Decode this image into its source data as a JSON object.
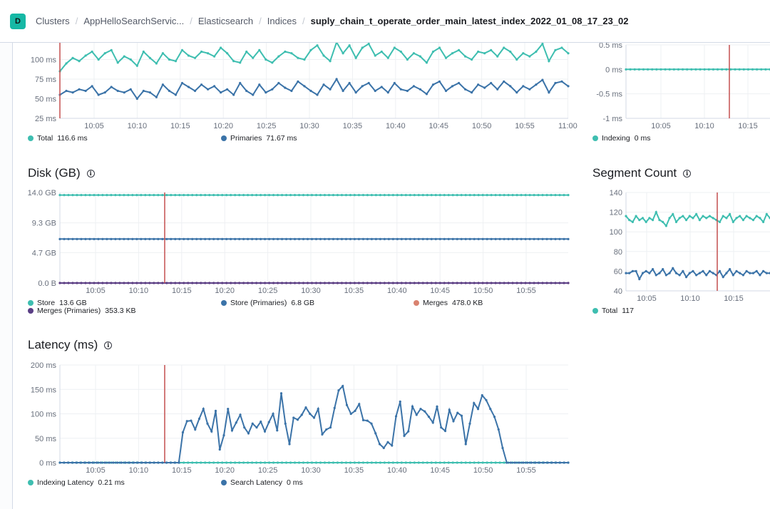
{
  "header": {
    "app_badge": "D",
    "breadcrumbs": [
      "Clusters",
      "AppHelloSearchServic...",
      "Elasticsearch",
      "Indices",
      "suply_chain_t_operate_order_main_latest_index_2022_01_08_17_23_02"
    ]
  },
  "colors": {
    "teal": "#3ebeb0",
    "blue": "#3b73a8",
    "purple": "#5a3e85",
    "salmon": "#d9826f",
    "marker": "#c44f4f"
  },
  "chart_data": [
    {
      "id": "search_rate_partial",
      "type": "line",
      "title": "",
      "x_ticks": [
        "10:05",
        "10:10",
        "10:15",
        "10:20",
        "10:25",
        "10:30",
        "10:35",
        "10:40",
        "10:45",
        "10:50",
        "10:55",
        "11:00"
      ],
      "y_ticks": [
        "25 ms",
        "50 ms",
        "75 ms",
        "100 ms",
        "125 ms"
      ],
      "ylim": [
        25,
        125
      ],
      "series": [
        {
          "name": "Total",
          "legend_value": "116.6 ms",
          "color": "#3ebeb0",
          "values": [
            85,
            95,
            102,
            98,
            105,
            110,
            100,
            108,
            112,
            96,
            104,
            100,
            92,
            110,
            102,
            95,
            108,
            100,
            98,
            112,
            105,
            102,
            110,
            108,
            104,
            115,
            108,
            98,
            96,
            110,
            102,
            112,
            100,
            96,
            104,
            110,
            108,
            102,
            100,
            112,
            118,
            105,
            98,
            122,
            108,
            118,
            102,
            115,
            120,
            105,
            110,
            102,
            115,
            110,
            100,
            108,
            104,
            96,
            110,
            115,
            102,
            108,
            112,
            104,
            100,
            110,
            108,
            112,
            104,
            115,
            110,
            100,
            108,
            104,
            110,
            120,
            98,
            112,
            115,
            108
          ]
        },
        {
          "name": "Primaries",
          "legend_value": "71.67 ms",
          "color": "#3b73a8",
          "values": [
            55,
            60,
            58,
            62,
            60,
            66,
            55,
            58,
            65,
            60,
            58,
            62,
            50,
            60,
            58,
            52,
            68,
            60,
            55,
            70,
            65,
            60,
            68,
            62,
            66,
            58,
            62,
            55,
            70,
            60,
            55,
            68,
            58,
            62,
            70,
            64,
            60,
            72,
            66,
            60,
            55,
            68,
            62,
            75,
            60,
            70,
            58,
            66,
            70,
            60,
            65,
            58,
            70,
            62,
            60,
            66,
            62,
            56,
            68,
            72,
            60,
            66,
            70,
            62,
            58,
            68,
            64,
            70,
            62,
            72,
            66,
            58,
            66,
            62,
            68,
            74,
            58,
            70,
            72,
            66
          ]
        }
      ]
    },
    {
      "id": "indexing_partial",
      "type": "line",
      "title": "",
      "x_ticks": [
        "10:05",
        "10:10",
        "10:15"
      ],
      "y_ticks": [
        "0.5 ms",
        "0 ms",
        "-0.5 ms",
        "-1 ms"
      ],
      "ylim": [
        -1,
        0.5
      ],
      "series": [
        {
          "name": "Indexing",
          "legend_value": "0 ms",
          "color": "#3ebeb0",
          "values": [
            0
          ]
        }
      ]
    },
    {
      "id": "disk",
      "type": "line",
      "title": "Disk (GB)",
      "x_ticks": [
        "10:05",
        "10:10",
        "10:15",
        "10:20",
        "10:25",
        "10:30",
        "10:35",
        "10:40",
        "10:45",
        "10:50",
        "10:55",
        "11:00"
      ],
      "y_ticks": [
        "14.0 GB",
        "9.3 GB",
        "4.7 GB",
        "0.0 B"
      ],
      "ylim": [
        0,
        14.0
      ],
      "series": [
        {
          "name": "Store",
          "legend_value": "13.6 GB",
          "color": "#3ebeb0",
          "values": [
            13.6
          ]
        },
        {
          "name": "Store (Primaries)",
          "legend_value": "6.8 GB",
          "color": "#3b73a8",
          "values": [
            6.8
          ]
        },
        {
          "name": "Merges",
          "legend_value": "478.0 KB",
          "color": "#d9826f",
          "values": [
            0
          ]
        },
        {
          "name": "Merges (Primaries)",
          "legend_value": "353.3 KB",
          "color": "#5a3e85",
          "values": [
            0
          ]
        }
      ]
    },
    {
      "id": "segment_count",
      "type": "line",
      "title": "Segment Count",
      "x_ticks": [
        "10:05",
        "10:10",
        "10:15"
      ],
      "y_ticks": [
        "140",
        "120",
        "100",
        "80",
        "60",
        "40"
      ],
      "ylim": [
        40,
        140
      ],
      "series": [
        {
          "name": "Total",
          "legend_value": "117",
          "color": "#3ebeb0",
          "values": [
            116,
            112,
            110,
            116,
            112,
            114,
            110,
            114,
            112,
            120,
            112,
            110,
            106,
            114,
            118,
            110,
            114,
            116,
            112,
            116,
            114,
            118,
            112,
            116,
            114,
            116,
            114,
            112,
            110,
            116,
            114,
            118,
            110,
            114,
            116,
            112,
            116,
            114,
            112,
            116,
            114,
            110,
            118,
            114
          ]
        },
        {
          "name": "",
          "legend_value": "",
          "color": "#3b73a8",
          "values": [
            58,
            58,
            60,
            60,
            52,
            58,
            60,
            58,
            62,
            56,
            58,
            62,
            56,
            58,
            63,
            58,
            56,
            60,
            54,
            58,
            60,
            56,
            58,
            60,
            56,
            60,
            58,
            56,
            60,
            54,
            58,
            62,
            56,
            60,
            58,
            56,
            60,
            58,
            58,
            60,
            56,
            60,
            58,
            58
          ]
        }
      ]
    },
    {
      "id": "latency",
      "type": "line",
      "title": "Latency (ms)",
      "x_ticks": [
        "10:05",
        "10:10",
        "10:15",
        "10:20",
        "10:25",
        "10:30",
        "10:35",
        "10:40",
        "10:45",
        "10:50",
        "10:55",
        "11:00"
      ],
      "y_ticks": [
        "200 ms",
        "150 ms",
        "100 ms",
        "50 ms",
        "0 ms"
      ],
      "ylim": [
        0,
        200
      ],
      "series": [
        {
          "name": "Indexing Latency",
          "legend_value": "0.21 ms",
          "color": "#3ebeb0",
          "values": [
            0
          ]
        },
        {
          "name": "Search Latency",
          "legend_value": "0 ms",
          "color": "#3b73a8",
          "values": [
            0,
            0,
            0,
            0,
            0,
            0,
            0,
            0,
            0,
            0,
            0,
            0,
            0,
            0,
            0,
            0,
            0,
            0,
            0,
            0,
            0,
            0,
            0,
            0,
            0,
            0,
            0,
            0,
            0,
            0,
            62,
            85,
            86,
            68,
            90,
            110,
            80,
            64,
            106,
            27,
            56,
            110,
            66,
            82,
            98,
            72,
            60,
            80,
            72,
            84,
            64,
            83,
            100,
            66,
            142,
            80,
            38,
            92,
            88,
            98,
            113,
            100,
            92,
            110,
            58,
            68,
            72,
            112,
            148,
            157,
            118,
            100,
            106,
            120,
            87,
            86,
            80,
            60,
            38,
            30,
            42,
            35,
            95,
            125,
            55,
            64,
            115,
            98,
            110,
            105,
            94,
            82,
            115,
            72,
            65,
            108,
            85,
            102,
            96,
            38,
            80,
            122,
            110,
            138,
            128,
            110,
            94,
            68,
            30,
            0,
            0,
            0,
            0,
            0,
            0,
            0,
            0,
            0,
            0,
            0,
            0,
            0,
            0,
            0,
            0
          ]
        }
      ]
    }
  ]
}
